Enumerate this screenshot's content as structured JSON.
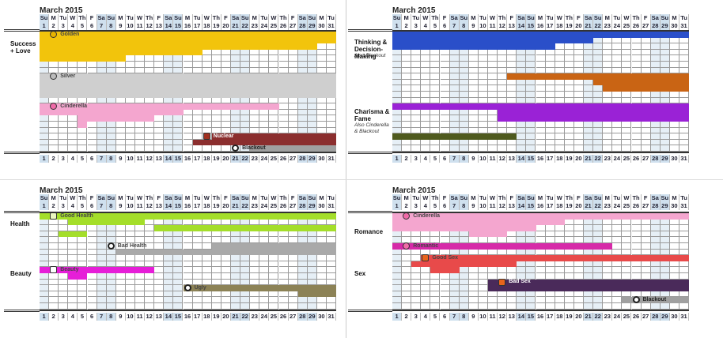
{
  "days": [
    "1",
    "2",
    "3",
    "4",
    "5",
    "6",
    "7",
    "8",
    "9",
    "10",
    "11",
    "12",
    "13",
    "14",
    "15",
    "16",
    "17",
    "18",
    "19",
    "20",
    "21",
    "22",
    "23",
    "24",
    "25",
    "26",
    "27",
    "28",
    "29",
    "30",
    "31"
  ],
  "weekdays": [
    "Su",
    "M",
    "Tu",
    "W",
    "Th",
    "F",
    "Sa",
    "Su",
    "M",
    "Tu",
    "W",
    "Th",
    "F",
    "Sa",
    "Su",
    "M",
    "Tu",
    "W",
    "Th",
    "F",
    "Sa",
    "Su",
    "M",
    "Tu",
    "W",
    "Th",
    "F",
    "Sa",
    "Su",
    "M",
    "Tu"
  ],
  "weekend_days": [
    1,
    7,
    8,
    14,
    15,
    21,
    22,
    28,
    29
  ],
  "chart_data": [
    {
      "type": "heatmap",
      "title": "March 2015",
      "groups": [
        {
          "label": "Success + Love",
          "sub": ""
        }
      ],
      "series": [
        {
          "name": "Golden",
          "color": "#f2c40c",
          "icon": "coin-icon",
          "rows": [
            [
              1,
              31
            ],
            [
              1,
              31
            ],
            [
              1,
              29
            ],
            [
              1,
              17
            ],
            [
              1,
              9
            ]
          ]
        },
        {
          "name": "Silver",
          "color": "#cfcfcf",
          "icon": "silver-coin-icon",
          "rows": [
            [
              1,
              31
            ],
            [
              1,
              31
            ],
            [
              1,
              31
            ],
            [
              1,
              31
            ]
          ]
        },
        {
          "name": "Cinderella",
          "color": "#f4a6cf",
          "icon": "heart-icon",
          "rows": [
            [
              1,
              25
            ],
            [
              1,
              15
            ],
            [
              5,
              12
            ],
            [
              5,
              5
            ]
          ]
        },
        {
          "name": "Nuclear",
          "color": "#8b2e2e",
          "icon": "nuclear-icon",
          "rows": [
            [
              19,
              31
            ],
            [
              17,
              31
            ]
          ]
        },
        {
          "name": "Blackout",
          "color": "#a0a0a0",
          "icon": "blackout-icon",
          "rows": [
            [
              23,
              31
            ]
          ]
        }
      ]
    },
    {
      "type": "heatmap",
      "title": "March 2015",
      "groups": [
        {
          "label": "Thinking & Decision-Making",
          "sub": "Also Blackout"
        },
        {
          "label": "Charisma & Fame",
          "sub": "Also Cinderella & Blackout"
        }
      ],
      "series": [
        {
          "name": "",
          "color": "#2a4fc9",
          "icon": "",
          "rows": [
            [
              1,
              31
            ],
            [
              1,
              21
            ],
            [
              1,
              17
            ]
          ]
        },
        {
          "name": "",
          "color": "#c96414",
          "icon": "",
          "rows": [
            [
              13,
              31
            ],
            [
              22,
              31
            ],
            [
              23,
              31
            ]
          ]
        },
        {
          "name": "",
          "color": "#9a22d6",
          "icon": "",
          "rows": [
            [
              1,
              31
            ],
            [
              12,
              31
            ],
            [
              12,
              31
            ]
          ]
        },
        {
          "name": "",
          "color": "#4f5a1e",
          "icon": "",
          "rows": [
            [
              1,
              13
            ]
          ]
        }
      ]
    },
    {
      "type": "heatmap",
      "title": "March 2015",
      "groups": [
        {
          "label": "Health",
          "sub": ""
        },
        {
          "label": "Beauty",
          "sub": ""
        }
      ],
      "series": [
        {
          "name": "Good Health",
          "color": "#a4de2a",
          "icon": "health-icon",
          "rows": [
            [
              1,
              31
            ],
            [
              4,
              11
            ],
            [
              13,
              31
            ],
            [
              3,
              5
            ]
          ]
        },
        {
          "name": "Bad Health",
          "color": "#a9a9a9",
          "icon": "blackout-icon",
          "rows": [
            [
              19,
              31
            ],
            [
              9,
              31
            ]
          ]
        },
        {
          "name": "Beauty",
          "color": "#e61ed8",
          "icon": "beauty-icon",
          "rows": [
            [
              1,
              12
            ],
            [
              4,
              5
            ]
          ]
        },
        {
          "name": "Ugly",
          "color": "#8c8256",
          "icon": "blackout-icon",
          "rows": [
            [
              16,
              31
            ],
            [
              28,
              31
            ]
          ]
        }
      ]
    },
    {
      "type": "heatmap",
      "title": "March 2015",
      "groups": [
        {
          "label": "Romance",
          "sub": ""
        },
        {
          "label": "Sex",
          "sub": ""
        }
      ],
      "series": [
        {
          "name": "Cinderella",
          "color": "#f4a6cf",
          "icon": "heart-icon",
          "rows": [
            [
              1,
              31
            ],
            [
              1,
              18
            ],
            [
              1,
              15
            ],
            [
              9,
              12
            ]
          ]
        },
        {
          "name": "Romantic",
          "color": "#d62aa8",
          "icon": "heart-icon",
          "rows": [
            [
              1,
              23
            ]
          ]
        },
        {
          "name": "Good Sex",
          "color": "#e84a4a",
          "icon": "fire-icon",
          "rows": [
            [
              4,
              31
            ],
            [
              3,
              13
            ],
            [
              5,
              7
            ]
          ]
        },
        {
          "name": "Bad Sex",
          "color": "#4a2a5a",
          "icon": "fire-icon",
          "rows": [
            [
              11,
              31
            ],
            [
              11,
              31
            ]
          ]
        },
        {
          "name": "Blackout",
          "color": "#a0a0a0",
          "icon": "blackout-icon",
          "rows": [
            [
              25,
              31
            ]
          ]
        }
      ]
    }
  ]
}
